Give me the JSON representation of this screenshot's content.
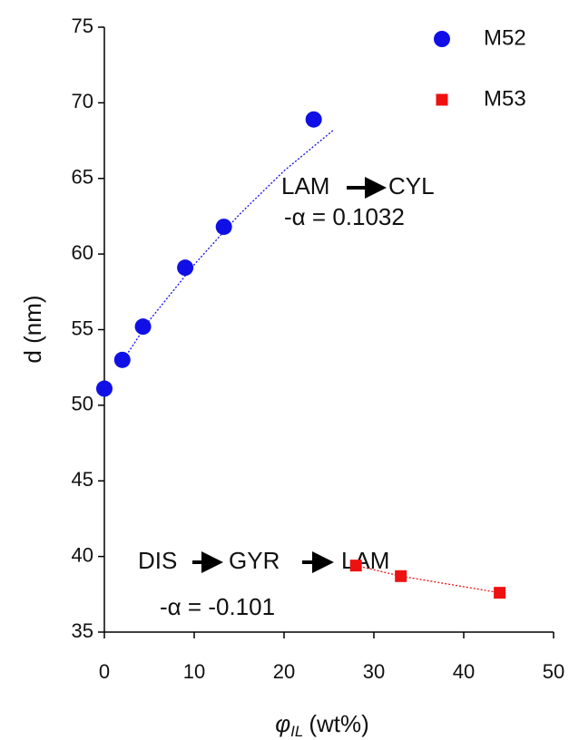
{
  "chart_data": {
    "type": "scatter",
    "x_label": "φ",
    "x_label_sub": "IL",
    "x_label_unit": "(wt%)",
    "y_label": "d (nm)",
    "xlim": [
      0,
      50
    ],
    "xticks": [
      0,
      10,
      20,
      30,
      40,
      50
    ],
    "ylim": [
      35,
      75
    ],
    "yticks": [
      35,
      40,
      45,
      50,
      55,
      60,
      65,
      70,
      75
    ],
    "series": [
      {
        "name": "M52",
        "color": "#1010e6",
        "marker": "circle",
        "x": [
          0,
          2,
          4.3,
          9,
          13.3,
          23.3
        ],
        "values": [
          51.1,
          53,
          55.2,
          59.1,
          61.8,
          68.9
        ],
        "fit": {
          "x": [
            2,
            5,
            10,
            15,
            20,
            25.5
          ],
          "values": [
            52.9,
            55.6,
            59.3,
            62.6,
            65.5,
            68.2
          ]
        }
      },
      {
        "name": "M53",
        "color": "#ee1111",
        "marker": "square",
        "x": [
          28,
          33,
          44
        ],
        "values": [
          39.4,
          38.7,
          37.6
        ],
        "fit": {
          "x": [
            28,
            33,
            44
          ],
          "values": [
            39.4,
            38.7,
            37.6
          ]
        }
      }
    ],
    "annotations": {
      "m52_phases": [
        "LAM",
        "CYL"
      ],
      "m52_alpha": "-α = 0.1032",
      "m53_phases": [
        "DIS",
        "GYR",
        "LAM"
      ],
      "m53_alpha": "-α = -0.101"
    }
  }
}
